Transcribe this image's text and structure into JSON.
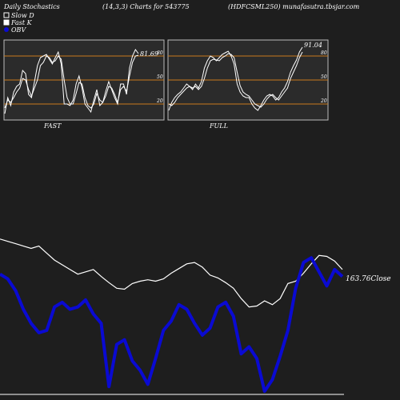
{
  "header": {
    "left": "Daily Stochastics",
    "center": "(14,3,3) Charts for 543775",
    "right": "(HDFCSML250) munafasutra.tbsjar.com"
  },
  "legend": {
    "items": [
      {
        "label": "Slow D",
        "style": "box-outline"
      },
      {
        "label": "Fast K",
        "style": "box-filled"
      },
      {
        "label": "OBV",
        "style": "dot-blue"
      }
    ]
  },
  "colors": {
    "background": "#1e1e1e",
    "panel_bg": "#2b2b2b",
    "level_line": "#c8781e",
    "line": "#ffffff",
    "obv": "#0a0ad2"
  },
  "chart_data": [
    {
      "type": "line",
      "label": "FAST",
      "ylim": [
        0,
        100
      ],
      "yticks": [
        20,
        50,
        80
      ],
      "levels": [
        20,
        50,
        80
      ],
      "last_value_label": "81.69",
      "series": [
        {
          "name": "Slow D",
          "values": [
            15,
            25,
            22,
            28,
            35,
            40,
            52,
            50,
            38,
            30,
            40,
            50,
            68,
            72,
            80,
            78,
            72,
            74,
            80,
            76,
            50,
            28,
            20,
            20,
            33,
            47,
            45,
            28,
            18,
            15,
            20,
            33,
            25,
            22,
            30,
            42,
            40,
            32,
            22,
            38,
            42,
            36,
            55,
            72,
            80,
            81
          ]
        },
        {
          "name": "Fast K",
          "values": [
            8,
            28,
            18,
            35,
            42,
            45,
            62,
            58,
            32,
            28,
            48,
            68,
            78,
            80,
            82,
            76,
            70,
            78,
            85,
            70,
            20,
            20,
            18,
            25,
            45,
            55,
            40,
            20,
            15,
            10,
            25,
            38,
            18,
            22,
            36,
            48,
            38,
            28,
            20,
            45,
            45,
            32,
            65,
            80,
            88,
            83
          ]
        }
      ]
    },
    {
      "type": "line",
      "label": "FULL",
      "ylim": [
        0,
        100
      ],
      "yticks": [
        20,
        50,
        80
      ],
      "levels": [
        20,
        50,
        80
      ],
      "last_value_label": "91.04",
      "series": [
        {
          "name": "Slow D",
          "values": [
            20,
            18,
            22,
            28,
            32,
            36,
            40,
            42,
            40,
            42,
            38,
            42,
            52,
            65,
            74,
            76,
            75,
            74,
            78,
            80,
            83,
            82,
            78,
            60,
            43,
            35,
            32,
            30,
            25,
            20,
            18,
            16,
            20,
            26,
            30,
            32,
            28,
            25,
            30,
            35,
            40,
            52,
            60,
            68,
            78,
            85
          ]
        },
        {
          "name": "Fast K",
          "values": [
            12,
            22,
            28,
            32,
            35,
            40,
            45,
            42,
            38,
            45,
            40,
            48,
            65,
            74,
            80,
            78,
            74,
            78,
            82,
            84,
            86,
            80,
            70,
            45,
            35,
            30,
            28,
            28,
            20,
            15,
            12,
            18,
            25,
            30,
            32,
            30,
            25,
            28,
            35,
            40,
            48,
            60,
            68,
            75,
            85,
            91
          ]
        }
      ]
    },
    {
      "type": "line",
      "label": "OBV and Close",
      "last_value_label": "163.76Close",
      "series": [
        {
          "name": "Close",
          "values": [
            705,
            700,
            695,
            690,
            685,
            690,
            675,
            660,
            650,
            640,
            630,
            635,
            640,
            625,
            612,
            600,
            598,
            610,
            615,
            618,
            615,
            620,
            632,
            642,
            652,
            655,
            645,
            628,
            622,
            612,
            600,
            578,
            560,
            562,
            573,
            565,
            578,
            610,
            615,
            632,
            652,
            670,
            668,
            658,
            640
          ]
        },
        {
          "name": "OBV",
          "values": [
            630,
            620,
            595,
            555,
            525,
            505,
            510,
            560,
            570,
            555,
            560,
            575,
            545,
            525,
            390,
            480,
            490,
            445,
            425,
            395,
            450,
            510,
            530,
            565,
            555,
            525,
            500,
            515,
            560,
            570,
            540,
            460,
            475,
            450,
            380,
            405,
            455,
            510,
            600,
            655,
            665,
            635,
            605,
            640,
            625
          ]
        }
      ],
      "ylim": [
        370,
        720
      ]
    }
  ]
}
